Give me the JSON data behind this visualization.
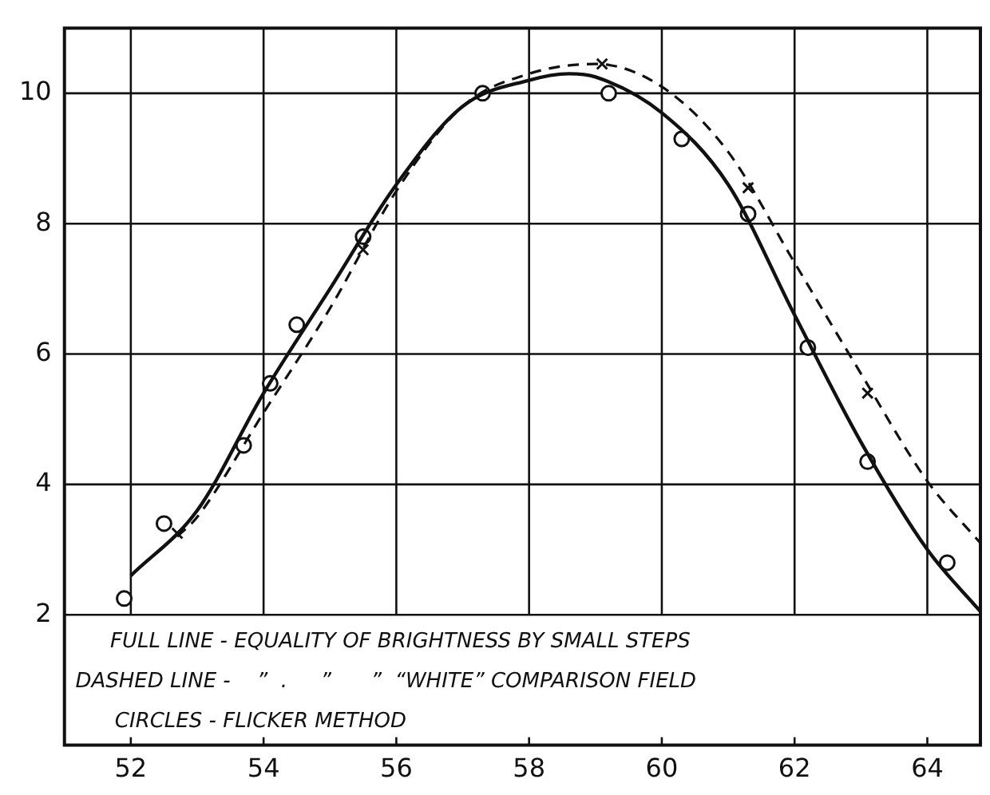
{
  "chart_data": {
    "type": "line",
    "xlim": [
      51,
      64.8
    ],
    "ylim": [
      0,
      11
    ],
    "xticks": [
      52,
      54,
      56,
      58,
      60,
      62,
      64
    ],
    "yticks": [
      2,
      4,
      6,
      8,
      10
    ],
    "grid": true,
    "annotations": [
      "FULL LINE - EQUALITY OF BRIGHTNESS BY SMALL STEPS",
      "DASHED LINE -    ”  .     ”      ”  “WHITE” COMPARISON FIELD",
      "CIRCLES - FLICKER METHOD"
    ],
    "series": [
      {
        "type": "line",
        "line_style": "solid",
        "marker": "none",
        "color": "#111111",
        "x": [
          52,
          53,
          54,
          55,
          56,
          57,
          58,
          58.6,
          59,
          60,
          61,
          62,
          63,
          64,
          64.8
        ],
        "values": [
          2.6,
          3.6,
          5.4,
          7.0,
          8.6,
          9.8,
          10.2,
          10.3,
          10.25,
          9.7,
          8.6,
          6.6,
          4.65,
          3.0,
          2.05
        ]
      },
      {
        "type": "line",
        "line_style": "dashed",
        "marker": "none",
        "color": "#111111",
        "x": [
          52.7,
          53,
          54,
          55,
          56,
          57,
          58,
          59,
          60,
          61,
          62,
          63,
          64,
          64.8
        ],
        "values": [
          3.2,
          3.5,
          5.1,
          6.7,
          8.5,
          9.8,
          10.3,
          10.45,
          10.1,
          9.1,
          7.4,
          5.7,
          4.05,
          3.1
        ]
      },
      {
        "type": "scatter",
        "marker": "circle",
        "color": "#111111",
        "x": [
          51.9,
          52.5,
          53.7,
          54.1,
          54.5,
          55.5,
          57.3,
          59.2,
          60.3,
          61.3,
          62.2,
          63.1,
          64.3
        ],
        "values": [
          2.25,
          3.4,
          4.6,
          5.55,
          6.45,
          7.8,
          10.0,
          10.0,
          9.3,
          8.15,
          6.1,
          4.35,
          2.8
        ]
      },
      {
        "type": "scatter",
        "marker": "cross",
        "color": "#111111",
        "x": [
          52.7,
          55.5,
          59.1,
          61.3,
          63.1
        ],
        "values": [
          3.25,
          7.6,
          10.45,
          8.55,
          5.4
        ]
      }
    ]
  }
}
